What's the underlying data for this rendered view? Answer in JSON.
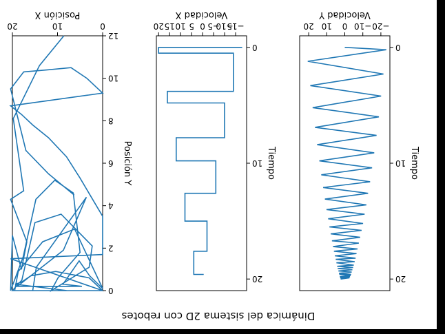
{
  "figure": {
    "suptitle": "Dinámica del sistema 2D con rebotes",
    "orientation_note": "figure is rendered rotated 180 degrees",
    "line_color": "#1f77b4",
    "background": "#ffffff"
  },
  "chart_data": [
    {
      "type": "line",
      "xlabel": "Posición X",
      "ylabel": "Posición Y",
      "xlim": [
        0,
        20
      ],
      "ylim": [
        0,
        12
      ],
      "xticks": [
        "0",
        "10",
        "20"
      ],
      "yticks": [
        "0",
        "2",
        "4",
        "6",
        "8",
        "10",
        "12"
      ],
      "series": [
        {
          "points": [
            [
              8.6,
              12.0
            ],
            [
              14.0,
              10.6
            ],
            [
              19.8,
              8.1
            ],
            [
              17.5,
              4.7
            ],
            [
              20.4,
              4.3
            ],
            [
              16.8,
              2.3
            ],
            [
              18.0,
              1.0
            ],
            [
              20.0,
              2.6
            ],
            [
              20.4,
              0.0
            ],
            [
              17.6,
              1.6
            ],
            [
              14.8,
              4.3
            ],
            [
              10.6,
              5.2
            ],
            [
              6.5,
              4.6
            ],
            [
              5.0,
              1.8
            ],
            [
              9.9,
              0.6
            ],
            [
              11.4,
              0.0
            ],
            [
              3.0,
              1.1
            ],
            [
              2.3,
              2.1
            ],
            [
              9.2,
              3.6
            ],
            [
              15.0,
              3.2
            ],
            [
              17.9,
              0.5
            ],
            [
              20.0,
              0.0
            ],
            [
              15.5,
              0.0
            ],
            [
              14.7,
              1.1
            ],
            [
              3.6,
              4.4
            ],
            [
              8.7,
              1.9
            ],
            [
              18.9,
              0.2
            ],
            [
              4.6,
              0.2
            ],
            [
              8.8,
              0.3
            ],
            [
              5.2,
              1.4
            ],
            [
              2.9,
              0.7
            ],
            [
              0.0,
              0.1
            ],
            [
              6.2,
              2.9
            ],
            [
              13.3,
              2.3
            ],
            [
              18.7,
              0.9
            ],
            [
              19.5,
              0.0
            ],
            [
              0.0,
              0.0
            ],
            [
              3.0,
              0.6
            ],
            [
              10.4,
              0.9
            ],
            [
              15.9,
              0.7
            ],
            [
              18.0,
              0.4
            ],
            [
              19.4,
              0.3
            ],
            [
              7.9,
              0.0
            ],
            [
              0.0,
              0.0
            ],
            [
              20.4,
              1.5
            ],
            [
              0.0,
              1.7
            ],
            [
              0.0,
              3.5
            ],
            [
              5.0,
              5.3
            ],
            [
              8.0,
              6.3
            ],
            [
              12.0,
              7.2
            ],
            [
              15.5,
              7.8
            ],
            [
              18.0,
              8.3
            ],
            [
              20.4,
              8.7
            ],
            [
              0.0,
              9.3
            ],
            [
              3.5,
              10.0
            ],
            [
              7.0,
              10.5
            ],
            [
              12.0,
              10.4
            ],
            [
              17.5,
              10.3
            ],
            [
              20.4,
              9.5
            ],
            [
              17.0,
              6.6
            ],
            [
              12.0,
              5.5
            ],
            [
              6.3,
              4.5
            ]
          ]
        }
      ]
    },
    {
      "type": "line",
      "xlabel": "Velocidad X",
      "ylabel": "Tiempo",
      "xlim": [
        -20,
        21
      ],
      "ylim": [
        -1,
        21
      ],
      "xticks": [
        "−15",
        "−10",
        "−5",
        "0",
        "5",
        "10",
        "15",
        "20"
      ],
      "yticks": [
        "0",
        "10",
        "20"
      ],
      "series": [
        {
          "points": [
            [
              -18.0,
              0.0
            ],
            [
              20.0,
              0.0
            ],
            [
              20.0,
              0.5
            ],
            [
              -14.0,
              0.5
            ],
            [
              -14.0,
              3.8
            ],
            [
              16.0,
              3.8
            ],
            [
              16.0,
              4.8
            ],
            [
              -10.0,
              4.8
            ],
            [
              -10.0,
              7.8
            ],
            [
              12.0,
              7.8
            ],
            [
              12.0,
              9.8
            ],
            [
              -6.0,
              9.8
            ],
            [
              -6.0,
              12.6
            ],
            [
              8.0,
              12.6
            ],
            [
              8.0,
              15.0
            ],
            [
              -2.0,
              15.0
            ],
            [
              -2.0,
              17.6
            ],
            [
              4.0,
              17.6
            ],
            [
              4.0,
              19.6
            ],
            [
              -0.5,
              19.6
            ]
          ]
        }
      ]
    },
    {
      "type": "line",
      "xlabel": "Velocidad Y",
      "ylabel": "Tiempo",
      "xlim": [
        -25,
        25
      ],
      "ylim": [
        -1,
        21
      ],
      "xticks": [
        "−20",
        "10",
        "0",
        "−10",
        "20"
      ],
      "xtick_values": [
        -20,
        10,
        0,
        -10,
        20
      ],
      "yticks": [
        "0",
        "10",
        "20"
      ],
      "series": [
        {
          "points": [
            [
              0.0,
              0.0
            ],
            [
              -23.0,
              0.2
            ],
            [
              20.5,
              1.2
            ],
            [
              -21.4,
              2.3
            ],
            [
              19.1,
              3.3
            ],
            [
              -20.1,
              4.2
            ],
            [
              17.8,
              5.2
            ],
            [
              -18.9,
              6.0
            ],
            [
              16.5,
              6.9
            ],
            [
              -17.6,
              7.6
            ],
            [
              15.3,
              8.4
            ],
            [
              -16.3,
              9.1
            ],
            [
              14.1,
              9.8
            ],
            [
              -15.1,
              10.4
            ],
            [
              13.0,
              11.0
            ],
            [
              -14.0,
              11.6
            ],
            [
              12.0,
              12.1
            ],
            [
              -12.9,
              12.6
            ],
            [
              11.0,
              13.1
            ],
            [
              -12.0,
              13.6
            ],
            [
              10.1,
              14.0
            ],
            [
              -11.0,
              14.4
            ],
            [
              9.2,
              14.8
            ],
            [
              -10.1,
              15.2
            ],
            [
              8.5,
              15.5
            ],
            [
              -9.3,
              15.8
            ],
            [
              7.8,
              16.1
            ],
            [
              -8.5,
              16.4
            ],
            [
              7.1,
              16.7
            ],
            [
              -7.8,
              16.9
            ],
            [
              6.5,
              17.2
            ],
            [
              -7.1,
              17.4
            ],
            [
              6.0,
              17.6
            ],
            [
              -6.5,
              17.8
            ],
            [
              5.5,
              18.0
            ],
            [
              -6.0,
              18.2
            ],
            [
              5.0,
              18.3
            ],
            [
              -5.5,
              18.5
            ],
            [
              4.6,
              18.6
            ],
            [
              -5.0,
              18.8
            ],
            [
              4.2,
              18.9
            ],
            [
              -4.6,
              19.0
            ],
            [
              3.9,
              19.1
            ],
            [
              -4.2,
              19.2
            ],
            [
              3.5,
              19.3
            ],
            [
              -3.8,
              19.4
            ],
            [
              3.2,
              19.5
            ],
            [
              -3.5,
              19.6
            ],
            [
              3.0,
              19.6
            ],
            [
              -3.2,
              19.7
            ],
            [
              2.7,
              19.8
            ],
            [
              -2.9,
              19.8
            ],
            [
              2.5,
              19.9
            ],
            [
              -2.6,
              19.9
            ],
            [
              2.3,
              20.0
            ]
          ]
        }
      ]
    }
  ]
}
